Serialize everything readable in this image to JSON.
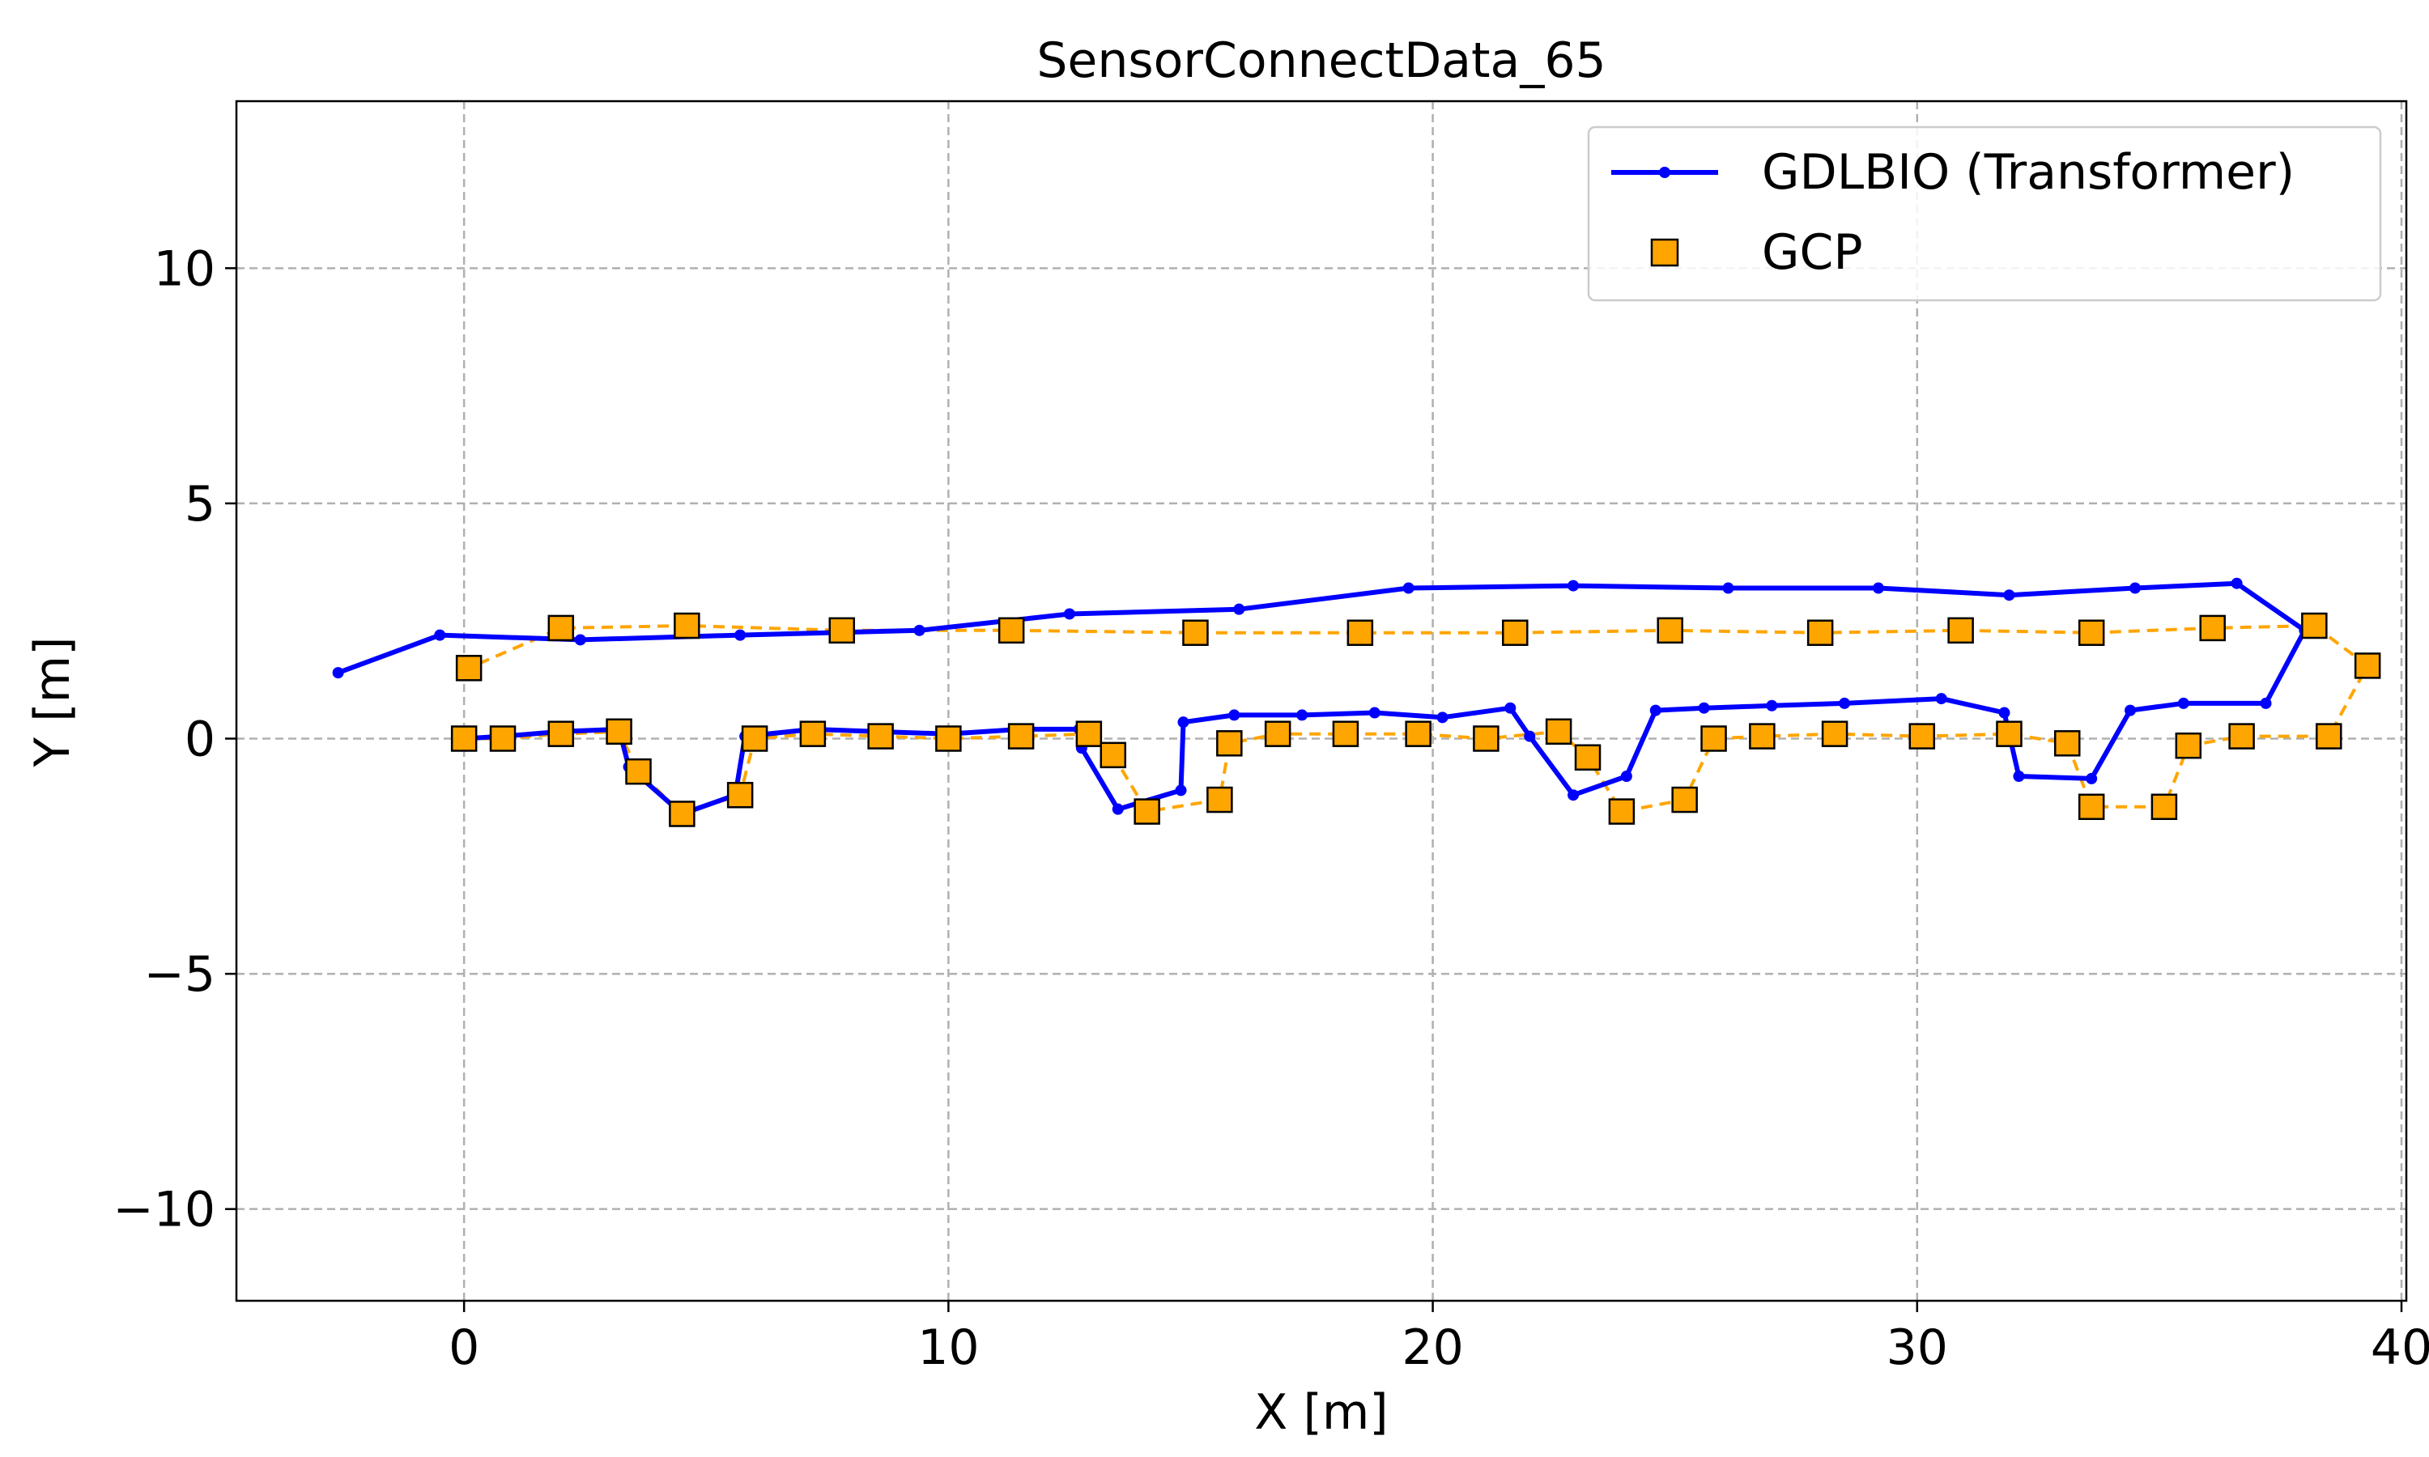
{
  "chart_data": {
    "type": "line",
    "title": "SensorConnectData_65",
    "xlabel": "X [m]",
    "ylabel": "Y [m]",
    "xlim": [
      -4.7,
      40.1
    ],
    "ylim": [
      -11.95,
      13.55
    ],
    "xticks": [
      0,
      10,
      20,
      30,
      40
    ],
    "yticks": [
      -10,
      -5,
      0,
      5,
      10
    ],
    "xtick_labels": [
      "0",
      "10",
      "20",
      "30",
      "40"
    ],
    "ytick_labels": [
      "−10",
      "−5",
      "0",
      "5",
      "10"
    ],
    "grid": true,
    "legend_position": "top-right",
    "series": [
      {
        "name": "GDLBIO (Transformer)",
        "style": "solid line with dot markers",
        "color": "#0000ff",
        "points": [
          [
            0.0,
            0.0
          ],
          [
            0.8,
            0.05
          ],
          [
            2.0,
            0.15
          ],
          [
            3.2,
            0.2
          ],
          [
            3.4,
            -0.6
          ],
          [
            4.5,
            -1.6
          ],
          [
            5.6,
            -1.2
          ],
          [
            5.8,
            0.05
          ],
          [
            7.2,
            0.2
          ],
          [
            8.5,
            0.15
          ],
          [
            10.0,
            0.1
          ],
          [
            11.5,
            0.2
          ],
          [
            12.7,
            0.2
          ],
          [
            12.75,
            -0.2
          ],
          [
            13.5,
            -1.5
          ],
          [
            14.8,
            -1.1
          ],
          [
            14.85,
            0.35
          ],
          [
            15.9,
            0.5
          ],
          [
            17.3,
            0.5
          ],
          [
            18.8,
            0.55
          ],
          [
            20.2,
            0.45
          ],
          [
            21.6,
            0.65
          ],
          [
            22.0,
            0.05
          ],
          [
            22.9,
            -1.2
          ],
          [
            24.0,
            -0.8
          ],
          [
            24.6,
            0.6
          ],
          [
            25.6,
            0.65
          ],
          [
            27.0,
            0.7
          ],
          [
            28.5,
            0.75
          ],
          [
            30.5,
            0.85
          ],
          [
            31.8,
            0.55
          ],
          [
            32.1,
            -0.8
          ],
          [
            33.6,
            -0.85
          ],
          [
            34.4,
            0.6
          ],
          [
            35.5,
            0.75
          ],
          [
            37.2,
            0.75
          ],
          [
            38.0,
            2.3
          ],
          [
            36.6,
            3.3
          ],
          [
            34.5,
            3.2
          ],
          [
            31.9,
            3.05
          ],
          [
            29.2,
            3.2
          ],
          [
            26.1,
            3.2
          ],
          [
            22.9,
            3.25
          ],
          [
            19.5,
            3.2
          ],
          [
            16.0,
            2.75
          ],
          [
            12.5,
            2.65
          ],
          [
            9.4,
            2.3
          ],
          [
            5.7,
            2.2
          ],
          [
            2.4,
            2.1
          ],
          [
            -0.5,
            2.2
          ],
          [
            -2.6,
            1.4
          ]
        ]
      },
      {
        "name": "GCP",
        "style": "orange squares joined by dashed line",
        "color": "#ffa500",
        "points": [
          [
            0.0,
            0.0
          ],
          [
            0.8,
            0.0
          ],
          [
            2.0,
            0.1
          ],
          [
            3.2,
            0.15
          ],
          [
            3.6,
            -0.7
          ],
          [
            4.5,
            -1.6
          ],
          [
            5.7,
            -1.2
          ],
          [
            6.0,
            0.0
          ],
          [
            7.2,
            0.1
          ],
          [
            8.6,
            0.05
          ],
          [
            10.0,
            0.0
          ],
          [
            11.5,
            0.05
          ],
          [
            12.9,
            0.1
          ],
          [
            13.4,
            -0.35
          ],
          [
            14.1,
            -1.55
          ],
          [
            15.6,
            -1.3
          ],
          [
            15.8,
            -0.1
          ],
          [
            16.8,
            0.1
          ],
          [
            18.2,
            0.1
          ],
          [
            19.7,
            0.1
          ],
          [
            21.1,
            0.0
          ],
          [
            22.6,
            0.15
          ],
          [
            23.2,
            -0.4
          ],
          [
            23.9,
            -1.55
          ],
          [
            25.2,
            -1.3
          ],
          [
            25.8,
            0.0
          ],
          [
            26.8,
            0.05
          ],
          [
            28.3,
            0.1
          ],
          [
            30.1,
            0.05
          ],
          [
            31.9,
            0.1
          ],
          [
            33.1,
            -0.1
          ],
          [
            33.6,
            -1.45
          ],
          [
            35.1,
            -1.45
          ],
          [
            35.6,
            -0.15
          ],
          [
            36.7,
            0.05
          ],
          [
            38.5,
            0.05
          ],
          [
            39.3,
            1.55
          ],
          [
            38.2,
            2.4
          ],
          [
            36.1,
            2.35
          ],
          [
            33.6,
            2.25
          ],
          [
            30.9,
            2.3
          ],
          [
            28.0,
            2.25
          ],
          [
            24.9,
            2.3
          ],
          [
            21.7,
            2.25
          ],
          [
            18.5,
            2.25
          ],
          [
            15.1,
            2.25
          ],
          [
            11.3,
            2.3
          ],
          [
            7.8,
            2.3
          ],
          [
            4.6,
            2.4
          ],
          [
            2.0,
            2.35
          ],
          [
            0.1,
            1.5
          ]
        ]
      }
    ]
  }
}
